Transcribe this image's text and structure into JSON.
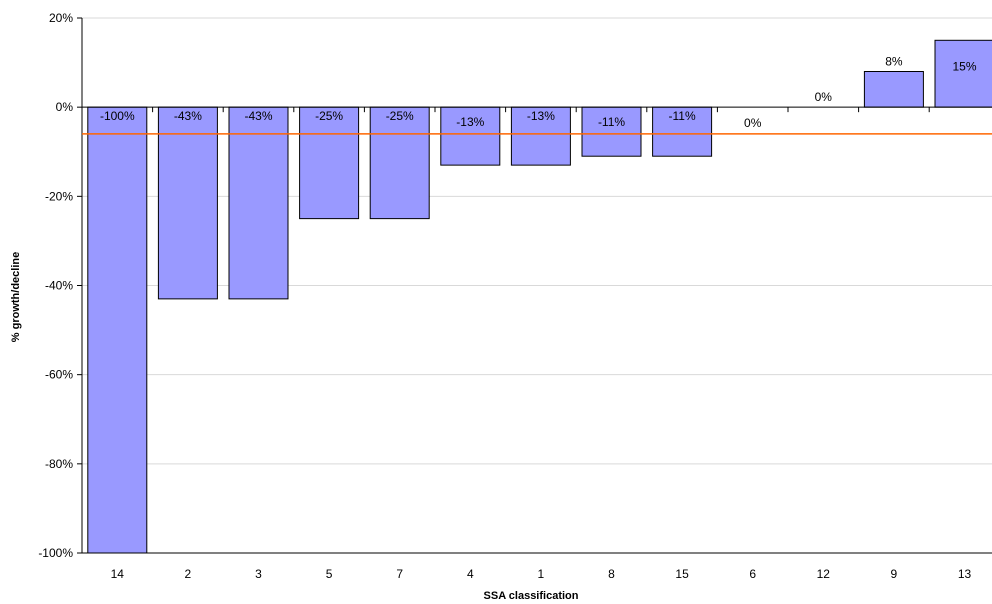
{
  "chart_data": {
    "type": "bar",
    "xlabel": "SSA classification",
    "ylabel": "% growth/decline",
    "categories": [
      "14",
      "2",
      "3",
      "5",
      "7",
      "4",
      "1",
      "8",
      "15",
      "6",
      "12",
      "9",
      "13"
    ],
    "values": [
      -100,
      -43,
      -43,
      -25,
      -25,
      -13,
      -13,
      -11,
      -11,
      0,
      0,
      8,
      15
    ],
    "data_labels": [
      "-100%",
      "-43%",
      "-43%",
      "-25%",
      "-25%",
      "-13%",
      "-13%",
      "-11%",
      "-11%",
      "0%",
      "0%",
      "8%",
      "15%"
    ],
    "ylim": [
      -100,
      20
    ],
    "yticks": [
      20,
      0,
      -20,
      -40,
      -60,
      -80,
      -100
    ],
    "ytick_labels": [
      "20%",
      "0%",
      "-20%",
      "-40%",
      "-60%",
      "-80%",
      "-100%"
    ],
    "reference_line": -6,
    "grid": true,
    "colors": {
      "bar_fill": "#9999ff",
      "bar_stroke": "#000000",
      "reference_line": "#ff6600",
      "gridline": "#d9d9d9"
    }
  }
}
